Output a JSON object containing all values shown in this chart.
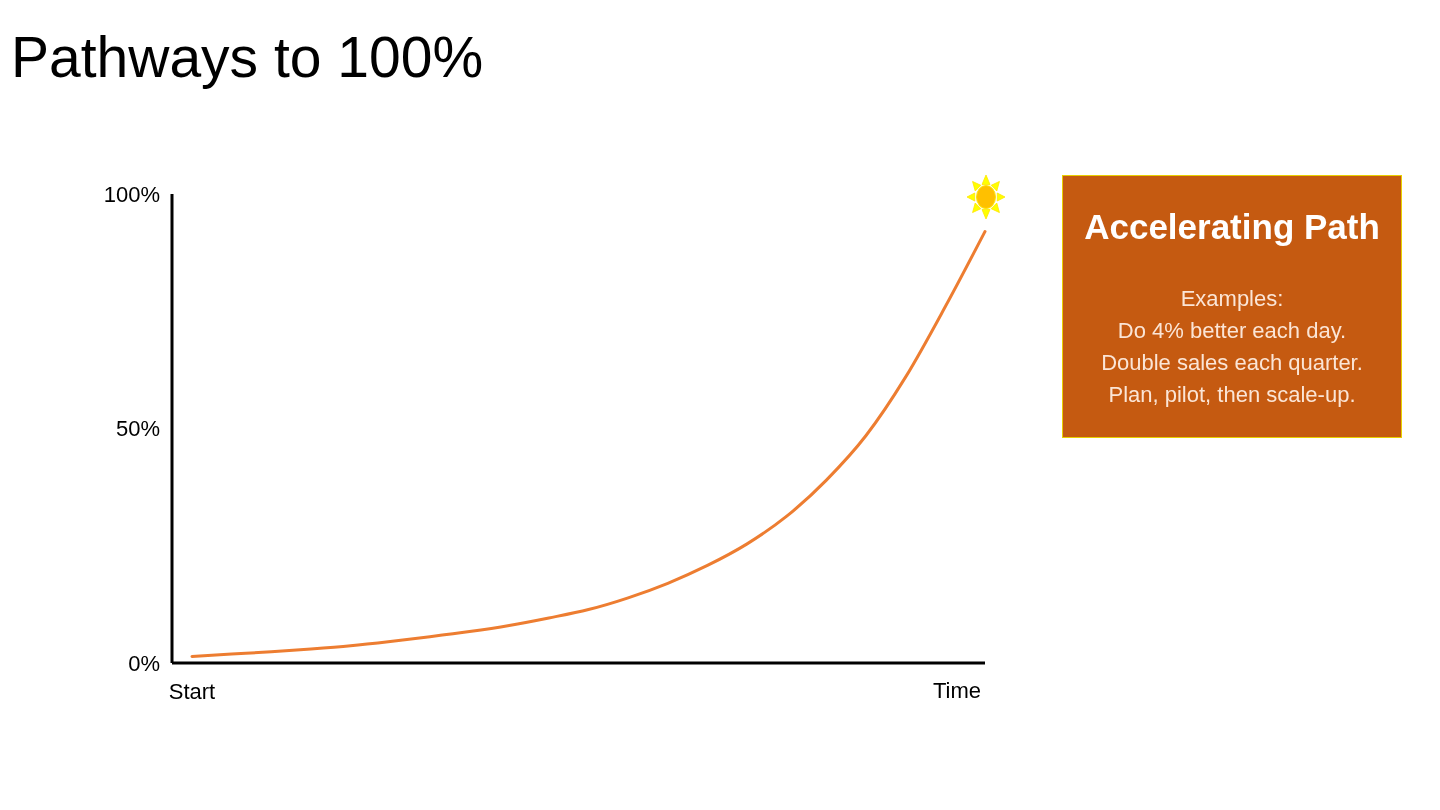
{
  "chart_data": [
    {
      "type": "line",
      "title": "Pathways to 100%",
      "xlabel": "Time",
      "categories": [
        "Start",
        null,
        null,
        null,
        null,
        null,
        null,
        null,
        null,
        null,
        null,
        null,
        null,
        null,
        null,
        null,
        null,
        null,
        null,
        null,
        null
      ],
      "values": [
        1.4,
        1.9,
        2.4,
        3,
        3.7,
        4.6,
        5.6,
        6.7,
        8,
        9.6,
        11.4,
        13.9,
        17,
        20.8,
        25.4,
        31.3,
        39,
        48.5,
        61,
        76,
        92
      ],
      "color": "#ed7d31",
      "ylim": [
        0,
        100
      ],
      "yticks": [
        {
          "value": 0,
          "label": "0%"
        },
        {
          "value": 50,
          "label": "50%"
        },
        {
          "value": 100,
          "label": "100%"
        }
      ],
      "marker": "none",
      "line_style": "solid"
    },
    {
      "type": "other",
      "title": "Accelerating Path",
      "annotations": [
        "Examples:",
        "Do 4% better each day.",
        "Double sales each quarter.",
        "Plan, pilot, then scale-up."
      ]
    }
  ]
}
